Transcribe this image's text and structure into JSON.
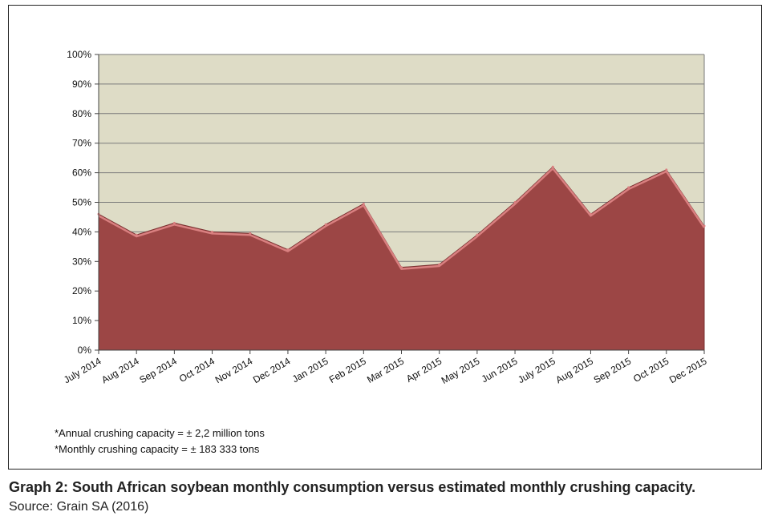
{
  "chart_data": {
    "type": "area",
    "categories": [
      "July 2014",
      "Aug 2014",
      "Sep 2014",
      "Oct 2014",
      "Nov 2014",
      "Dec 2014",
      "Jan 2015",
      "Feb 2015",
      "Mar 2015",
      "Apr 2015",
      "May 2015",
      "Jun 2015",
      "July 2015",
      "Aug 2015",
      "Sep 2015",
      "Oct 2015",
      "Dec 2015"
    ],
    "values": [
      46,
      39,
      43,
      40,
      39.5,
      34,
      42.5,
      49.5,
      28,
      29,
      39,
      50,
      62,
      46,
      55,
      61,
      42
    ],
    "ylim": [
      0,
      100
    ],
    "yticks": [
      "0%",
      "10%",
      "20%",
      "30%",
      "40%",
      "50%",
      "60%",
      "70%",
      "80%",
      "90%",
      "100%"
    ],
    "grid": true,
    "colors": {
      "fill": "#9c4645",
      "edge": "#d98080",
      "plot_bg": "#dedcc6",
      "grid": "#7a7a7a"
    }
  },
  "notes": [
    "*Annual crushing capacity = ± 2,2 million tons",
    "*Monthly crushing capacity = ± 183 333 tons"
  ],
  "caption": "Graph 2: South African soybean monthly consumption versus estimated monthly crushing capacity.",
  "source": "Source: Grain SA (2016)"
}
